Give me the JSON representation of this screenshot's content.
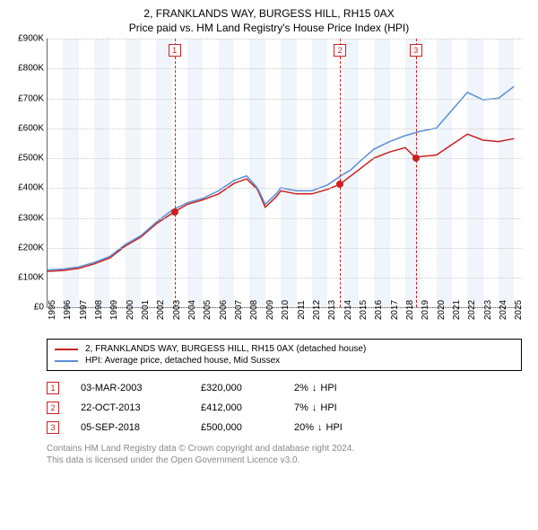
{
  "title": {
    "line1": "2, FRANKLANDS WAY, BURGESS HILL, RH15 0AX",
    "line2": "Price paid vs. HM Land Registry's House Price Index (HPI)",
    "fontsize": 12
  },
  "chart": {
    "type": "line",
    "background_color": "#ffffff",
    "band_color": "#f0f5fb",
    "grid_color": "#cccccc",
    "axis_color": "#666666",
    "y": {
      "min": 0,
      "max": 900000,
      "step": 100000,
      "labels": [
        "£0",
        "£100K",
        "£200K",
        "£300K",
        "£400K",
        "£500K",
        "£600K",
        "£700K",
        "£800K",
        "£900K"
      ],
      "values": [
        0,
        100000,
        200000,
        300000,
        400000,
        500000,
        600000,
        700000,
        800000,
        900000
      ],
      "fontsize": 10
    },
    "x": {
      "min": 1995,
      "max": 2025.5,
      "labels": [
        "1995",
        "1996",
        "1997",
        "1998",
        "1999",
        "2000",
        "2001",
        "2002",
        "2003",
        "2004",
        "2005",
        "2006",
        "2007",
        "2008",
        "2009",
        "2010",
        "2011",
        "2012",
        "2013",
        "2014",
        "2015",
        "2016",
        "2017",
        "2018",
        "2019",
        "2020",
        "2021",
        "2022",
        "2023",
        "2024",
        "2025"
      ],
      "values": [
        1995,
        1996,
        1997,
        1998,
        1999,
        2000,
        2001,
        2002,
        2003,
        2004,
        2005,
        2006,
        2007,
        2008,
        2009,
        2010,
        2011,
        2012,
        2013,
        2014,
        2015,
        2016,
        2017,
        2018,
        2019,
        2020,
        2021,
        2022,
        2023,
        2024,
        2025
      ],
      "fontsize": 10,
      "band_years_alt": true
    },
    "series": [
      {
        "name": "property",
        "label": "2, FRANKLANDS WAY, BURGESS HILL, RH15 0AX (detached house)",
        "color": "#cc2020",
        "width": 1.5,
        "points": [
          [
            1995,
            120000
          ],
          [
            1996,
            123000
          ],
          [
            1997,
            130000
          ],
          [
            1998,
            145000
          ],
          [
            1999,
            165000
          ],
          [
            2000,
            205000
          ],
          [
            2001,
            235000
          ],
          [
            2002,
            280000
          ],
          [
            2003.17,
            320000
          ],
          [
            2004,
            345000
          ],
          [
            2005,
            360000
          ],
          [
            2006,
            380000
          ],
          [
            2007,
            415000
          ],
          [
            2007.8,
            430000
          ],
          [
            2008.5,
            395000
          ],
          [
            2009,
            335000
          ],
          [
            2009.7,
            370000
          ],
          [
            2010,
            390000
          ],
          [
            2011,
            380000
          ],
          [
            2012,
            380000
          ],
          [
            2013,
            395000
          ],
          [
            2013.81,
            412000
          ],
          [
            2014.5,
            440000
          ],
          [
            2015,
            460000
          ],
          [
            2016,
            500000
          ],
          [
            2017,
            520000
          ],
          [
            2018,
            535000
          ],
          [
            2018.68,
            500000
          ],
          [
            2019,
            505000
          ],
          [
            2020,
            510000
          ],
          [
            2021,
            545000
          ],
          [
            2022,
            580000
          ],
          [
            2023,
            560000
          ],
          [
            2024,
            555000
          ],
          [
            2025,
            565000
          ]
        ]
      },
      {
        "name": "hpi",
        "label": "HPI: Average price, detached house, Mid Sussex",
        "color": "#5b8fd6",
        "width": 1.5,
        "points": [
          [
            1995,
            125000
          ],
          [
            1996,
            128000
          ],
          [
            1997,
            135000
          ],
          [
            1998,
            150000
          ],
          [
            1999,
            170000
          ],
          [
            2000,
            210000
          ],
          [
            2001,
            240000
          ],
          [
            2002,
            285000
          ],
          [
            2003,
            325000
          ],
          [
            2004,
            350000
          ],
          [
            2005,
            365000
          ],
          [
            2006,
            390000
          ],
          [
            2007,
            425000
          ],
          [
            2007.8,
            440000
          ],
          [
            2008.5,
            400000
          ],
          [
            2009,
            345000
          ],
          [
            2009.7,
            380000
          ],
          [
            2010,
            400000
          ],
          [
            2011,
            390000
          ],
          [
            2012,
            390000
          ],
          [
            2013,
            410000
          ],
          [
            2014,
            445000
          ],
          [
            2014.5,
            460000
          ],
          [
            2015,
            485000
          ],
          [
            2016,
            530000
          ],
          [
            2017,
            555000
          ],
          [
            2018,
            575000
          ],
          [
            2019,
            590000
          ],
          [
            2020,
            600000
          ],
          [
            2021,
            660000
          ],
          [
            2022,
            720000
          ],
          [
            2023,
            695000
          ],
          [
            2024,
            700000
          ],
          [
            2025,
            740000
          ]
        ]
      }
    ],
    "markers": [
      {
        "n": "1",
        "year": 2003.17,
        "price": 320000
      },
      {
        "n": "2",
        "year": 2013.81,
        "price": 412000
      },
      {
        "n": "3",
        "year": 2018.68,
        "price": 500000
      }
    ],
    "marker_color": "#cc2020"
  },
  "legend": {
    "border_color": "#000000",
    "fontsize": 10
  },
  "transactions": [
    {
      "n": "1",
      "date": "03-MAR-2003",
      "price": "£320,000",
      "pct": "2%",
      "arrow": "↓",
      "rel": "HPI"
    },
    {
      "n": "2",
      "date": "22-OCT-2013",
      "price": "£412,000",
      "pct": "7%",
      "arrow": "↓",
      "rel": "HPI"
    },
    {
      "n": "3",
      "date": "05-SEP-2018",
      "price": "£500,000",
      "pct": "20%",
      "arrow": "↓",
      "rel": "HPI"
    }
  ],
  "footer": {
    "line1": "Contains HM Land Registry data © Crown copyright and database right 2024.",
    "line2": "This data is licensed under the Open Government Licence v3.0.",
    "color": "#888888",
    "fontsize": 10
  }
}
